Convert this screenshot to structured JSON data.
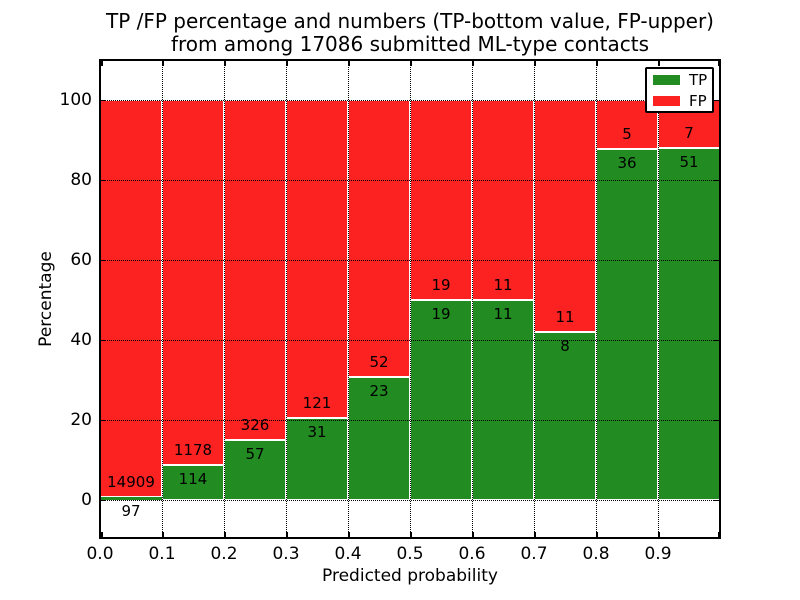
{
  "chart_data": {
    "type": "bar",
    "stacked": true,
    "normalized_to_percent": true,
    "title": "TP /FP percentage and numbers (TP-bottom value, FP-upper) from among 17086 submitted ML-type contacts",
    "title_lines": [
      "TP /FP percentage and numbers (TP-bottom value, FP-upper)",
      "from among 17086 submitted ML-type contacts"
    ],
    "xlabel": "Predicted probability",
    "ylabel": "Percentage",
    "total_contacts": 17086,
    "bin_edges": [
      0.0,
      0.1,
      0.2,
      0.3,
      0.4,
      0.5,
      0.6,
      0.7,
      0.8,
      0.9,
      1.0
    ],
    "series": [
      {
        "name": "TP",
        "color": "#228b22",
        "values": [
          97,
          114,
          57,
          31,
          23,
          19,
          11,
          8,
          36,
          51
        ]
      },
      {
        "name": "FP",
        "color": "#fc2222",
        "values": [
          14909,
          1178,
          326,
          121,
          52,
          19,
          11,
          11,
          5,
          7
        ]
      }
    ],
    "tp_percent_per_bin": [
      0.65,
      8.82,
      14.88,
      20.39,
      30.67,
      50.0,
      50.0,
      42.11,
      87.8,
      87.93
    ],
    "x_ticks": [
      "0.0",
      "0.1",
      "0.2",
      "0.3",
      "0.4",
      "0.5",
      "0.6",
      "0.7",
      "0.8",
      "0.9"
    ],
    "y_ticks": [
      "0",
      "20",
      "40",
      "60",
      "80",
      "100"
    ],
    "xlim": [
      0.0,
      1.0
    ],
    "ylim": [
      -10,
      110
    ],
    "grid": "dotted-black-on-top",
    "bar_edge_color": "#ffffff",
    "axes_color": "#000000",
    "background_color": "#ffffff",
    "legend": {
      "position": "upper right",
      "entries": [
        {
          "label": "TP",
          "color": "#228b22"
        },
        {
          "label": "FP",
          "color": "#fc2222"
        }
      ]
    }
  }
}
